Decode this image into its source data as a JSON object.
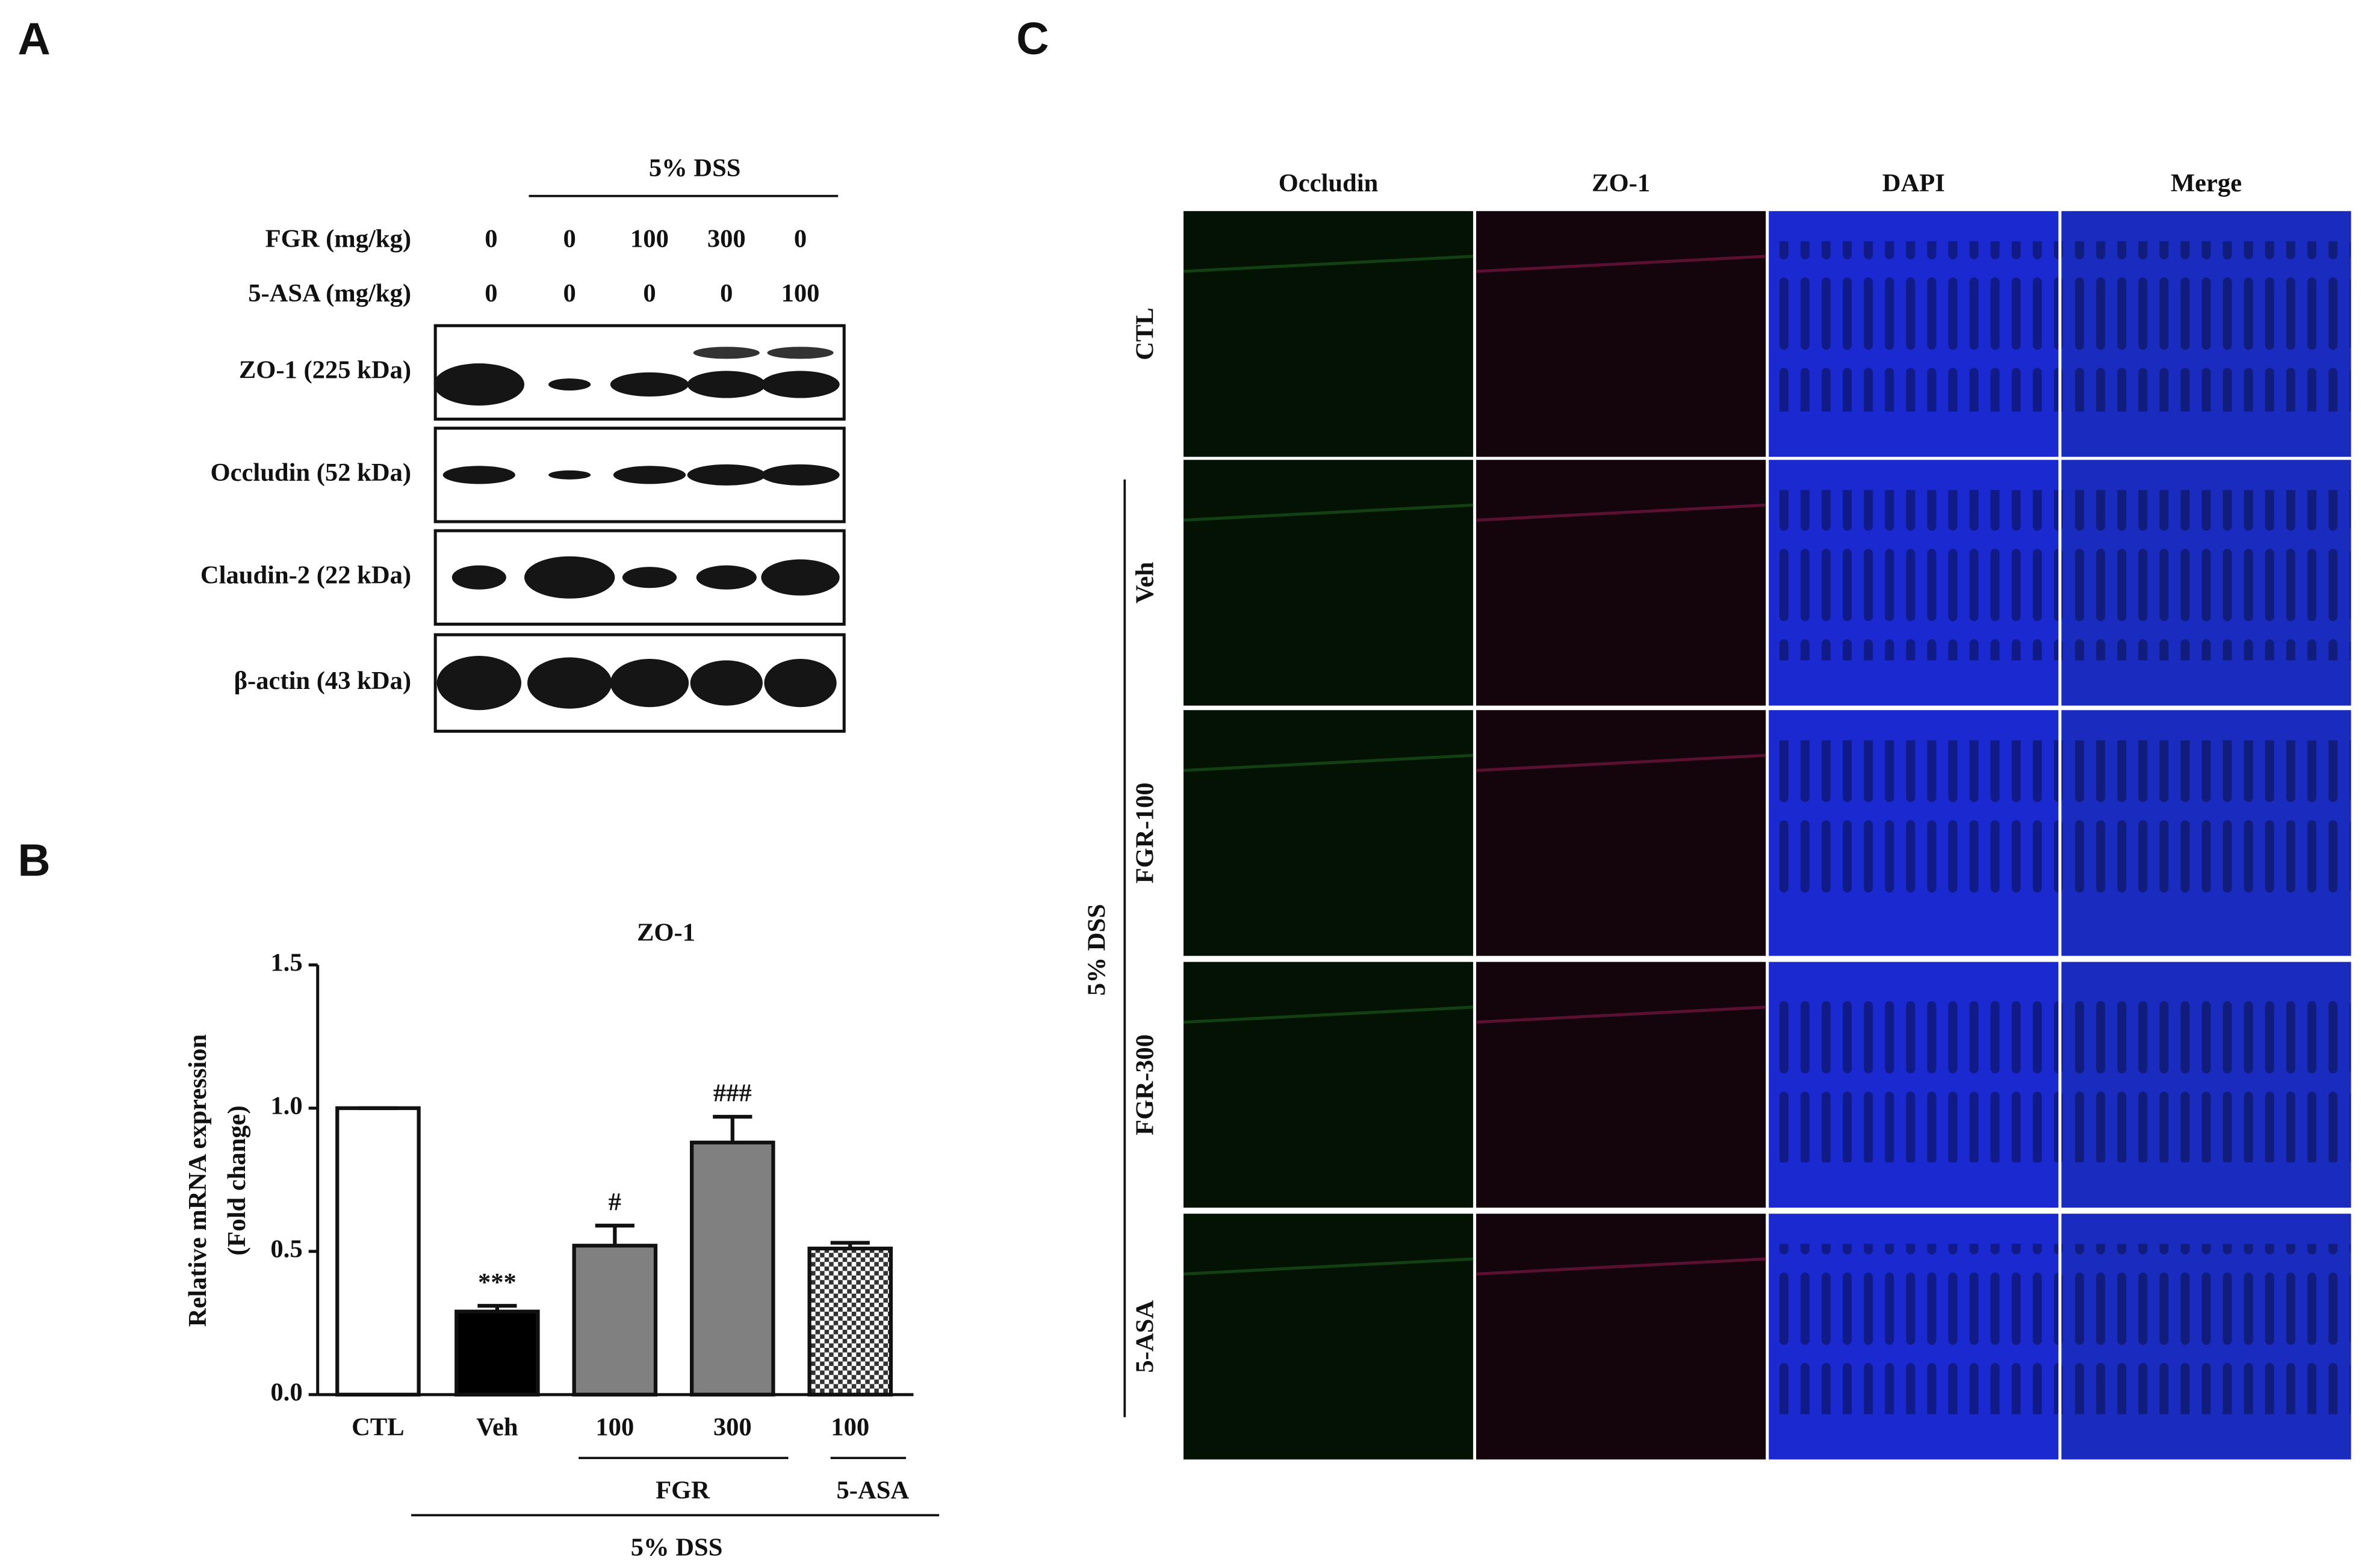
{
  "panel_a": {
    "label": "A",
    "treatment": "5% DSS",
    "doses": [
      {
        "label": "FGR (mg/kg)",
        "values": [
          0,
          0,
          100,
          300,
          0
        ]
      },
      {
        "label": "5-ASA (mg/kg)",
        "values": [
          0,
          0,
          0,
          0,
          100
        ]
      }
    ],
    "blots": [
      "ZO-1 (225 kDa)",
      "Occludin (52 kDa)",
      "Claudin-2 (22 kDa)",
      "β-actin (43 kDa)"
    ]
  },
  "chart_data": {
    "type": "bar",
    "label": "B",
    "title": "ZO-1",
    "y_label": [
      "Relative mRNA expression",
      "(Fold change)"
    ],
    "categories": [
      "CTL",
      "Veh",
      "100",
      "300",
      "100"
    ],
    "values": [
      1.0,
      0.29,
      0.52,
      0.88,
      0.51
    ],
    "errors": [
      0,
      0.02,
      0.07,
      0.09,
      0.02
    ],
    "annotations": [
      null,
      "***",
      "#",
      "###",
      null
    ],
    "colors": [
      "#ffffff",
      "#000000",
      "#808080",
      "#808080",
      "#bbbbbb"
    ],
    "patterns": [
      null,
      null,
      null,
      null,
      "checkered"
    ],
    "groups": [
      "FGR",
      "5-ASA",
      "5% DSS"
    ],
    "ylim": [
      0,
      1.5
    ],
    "yticks": [
      {
        "value": 0,
        "label": "0.0"
      },
      {
        "value": 0.5,
        "label": "0.5"
      },
      {
        "value": 1.0,
        "label": "1.0"
      },
      {
        "value": 1.5,
        "label": "1.5"
      }
    ]
  },
  "panel_c": {
    "label": "C",
    "columns": [
      {
        "label": "Occludin",
        "color": "#1f9a1f"
      },
      {
        "label": "ZO-1",
        "color": "#e0102a"
      },
      {
        "label": "DAPI",
        "color": "#1515d0"
      },
      {
        "label": "Merge",
        "color": "#111111"
      }
    ],
    "rows": [
      "CTL",
      "Veh",
      "FGR-100",
      "FGR-300",
      "5-ASA"
    ],
    "group": "5% DSS"
  }
}
